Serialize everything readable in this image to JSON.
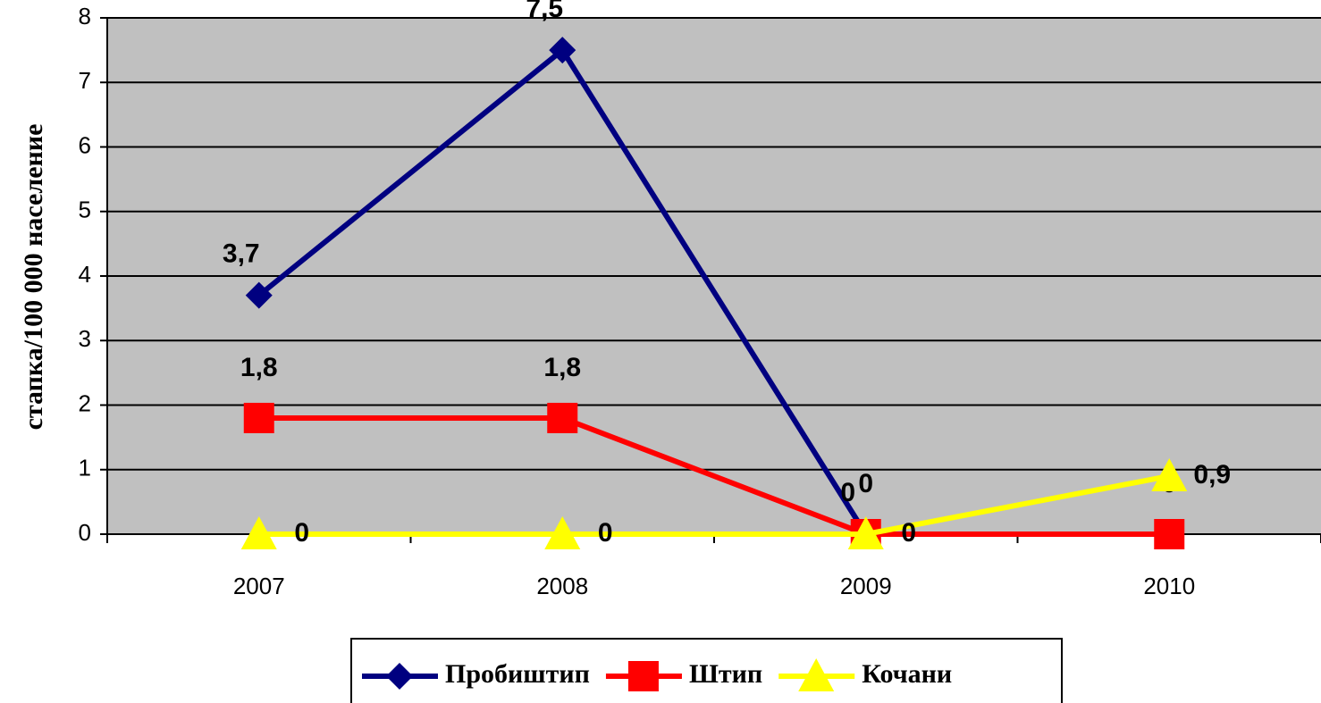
{
  "chart_data": {
    "type": "line",
    "ylabel": "стапка/100 000 население",
    "categories": [
      "2007",
      "2008",
      "2009",
      "2010"
    ],
    "series": [
      {
        "name": "Пробиштип",
        "color": "#000080",
        "marker": "diamond",
        "values": [
          3.7,
          7.5,
          0,
          null
        ],
        "value_labels": [
          "3,7",
          "7,5",
          "0",
          null
        ]
      },
      {
        "name": "Штип",
        "color": "#ff0000",
        "marker": "square",
        "values": [
          1.8,
          1.8,
          0,
          0
        ],
        "value_labels": [
          "1,8",
          "1,8",
          "0",
          "0"
        ]
      },
      {
        "name": "Кочани",
        "color": "#ffff00",
        "marker": "triangle",
        "values": [
          0,
          0,
          0,
          0.9
        ],
        "value_labels": [
          "0",
          "0",
          "0",
          "0,9"
        ]
      }
    ],
    "ylim": [
      0,
      8
    ],
    "yticks": [
      0,
      1,
      2,
      3,
      4,
      5,
      6,
      7,
      8
    ],
    "grid": true,
    "legend": "bottom"
  }
}
